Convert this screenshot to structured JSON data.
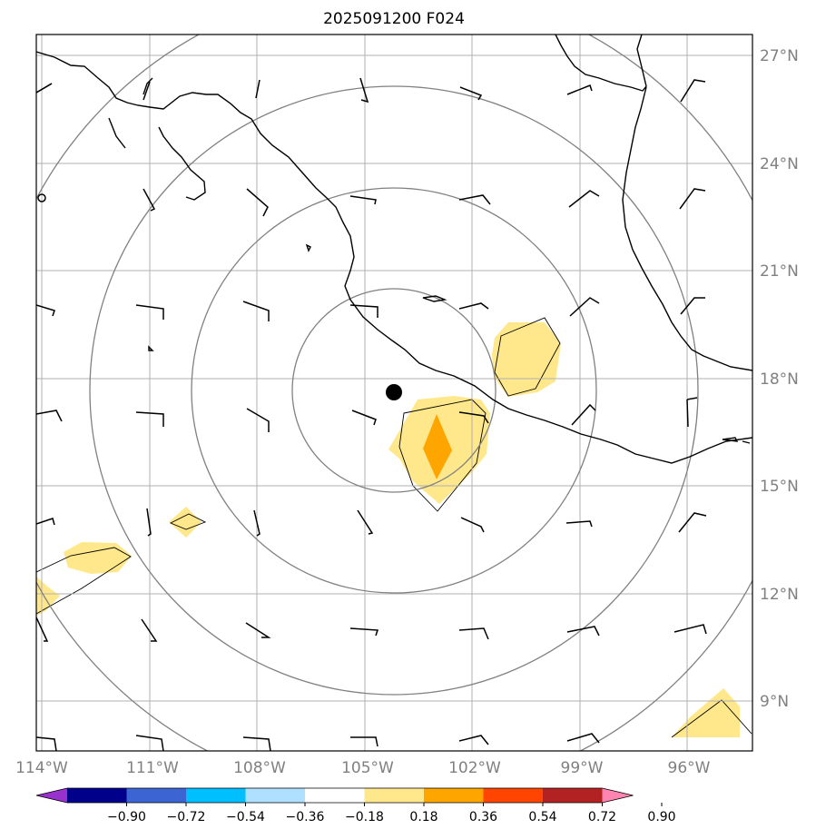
{
  "title": "2025091200 F024",
  "lon_labels": [
    "114°W",
    "111°W",
    "108°W",
    "105°W",
    "102°W",
    "99°W",
    "96°W"
  ],
  "lat_labels": [
    "27°N",
    "24°N",
    "21°N",
    "18°N",
    "15°N",
    "12°N",
    "9°N"
  ],
  "colorbar": {
    "ticks": [
      "−0.90",
      "−0.72",
      "−0.54",
      "−0.36",
      "−0.18",
      "0.18",
      "0.36",
      "0.54",
      "0.72",
      "0.90"
    ],
    "colors": [
      "#9932cc",
      "#00008b",
      "#3c64d2",
      "#00bfff",
      "#b0e0ff",
      "#ffffff",
      "#ffe88c",
      "#ffa500",
      "#ff4500",
      "#b22222",
      "#ff85b0"
    ]
  },
  "center_marker": {
    "lon": -104.2,
    "lat": 17.6
  },
  "wind_barb_color": "#000000",
  "range_ring_color": "#808080",
  "grid_color": "#b0b0b0",
  "coastline_color": "#000000"
}
